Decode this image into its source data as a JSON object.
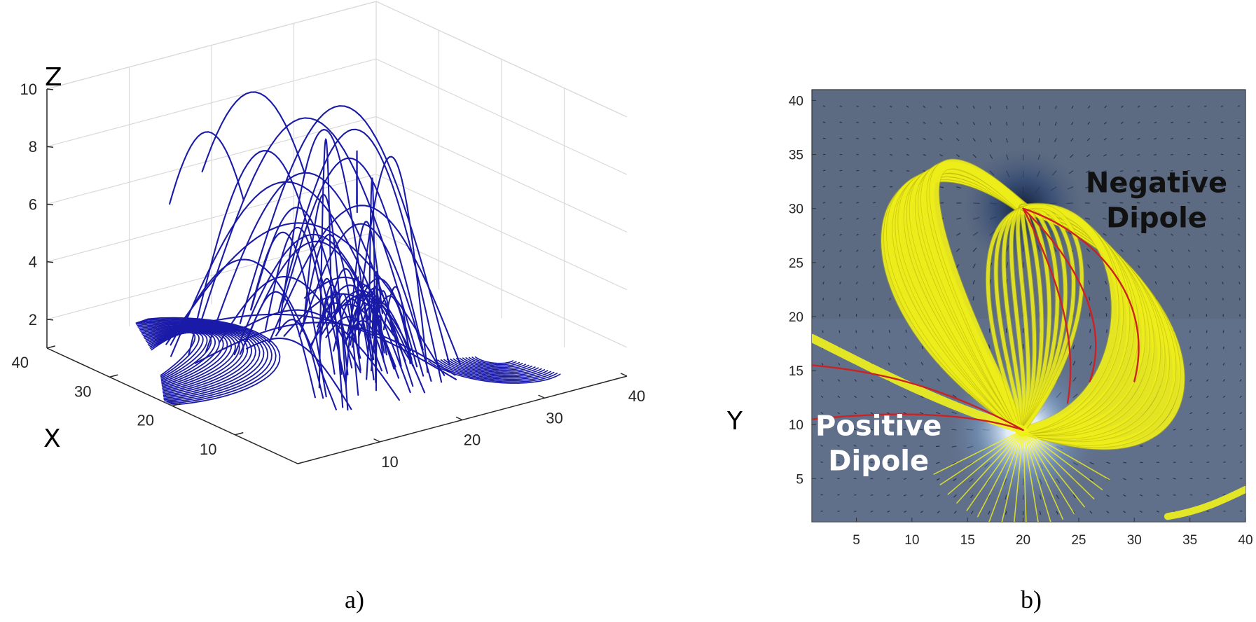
{
  "chart_data": [
    {
      "type": "line",
      "panel_label": "a)",
      "projection": "3d",
      "xlabel": "X",
      "ylabel": "Y",
      "zlabel": "Z",
      "xlim": [
        0,
        40
      ],
      "ylim": [
        0,
        40
      ],
      "zlim": [
        1,
        10
      ],
      "x_ticks": [
        "10",
        "20",
        "30",
        "40"
      ],
      "y_ticks": [
        "10",
        "20",
        "30",
        "40"
      ],
      "z_ticks": [
        "2",
        "4",
        "6",
        "8",
        "10"
      ],
      "grid": true,
      "series": [
        {
          "line_color": "#1a1aa8"
        }
      ]
    },
    {
      "type": "heatmap",
      "panel_label": "b)",
      "xlim": [
        1,
        40
      ],
      "ylim": [
        1,
        41
      ],
      "x_ticks": [
        "5",
        "10",
        "15",
        "20",
        "25",
        "30",
        "35",
        "40"
      ],
      "y_ticks": [
        "5",
        "10",
        "15",
        "20",
        "25",
        "30",
        "35",
        "40"
      ],
      "annotations": [
        {
          "text_lines": [
            "Negative",
            "Dipole"
          ],
          "x": 32,
          "y": 31.5,
          "color": "#111111"
        },
        {
          "text_lines": [
            "Positive",
            "Dipole"
          ],
          "x": 7,
          "y": 9,
          "color": "#ffffff"
        }
      ],
      "sources": [
        {
          "name": "negative",
          "x": 20,
          "y": 30,
          "color": "#1d2f52"
        },
        {
          "name": "positive",
          "x": 20,
          "y": 9.5,
          "color": "#ffffff"
        }
      ],
      "background_color": "#5d6b82",
      "tube_color": "#f2f21c",
      "line_color": "#cc2222"
    }
  ]
}
